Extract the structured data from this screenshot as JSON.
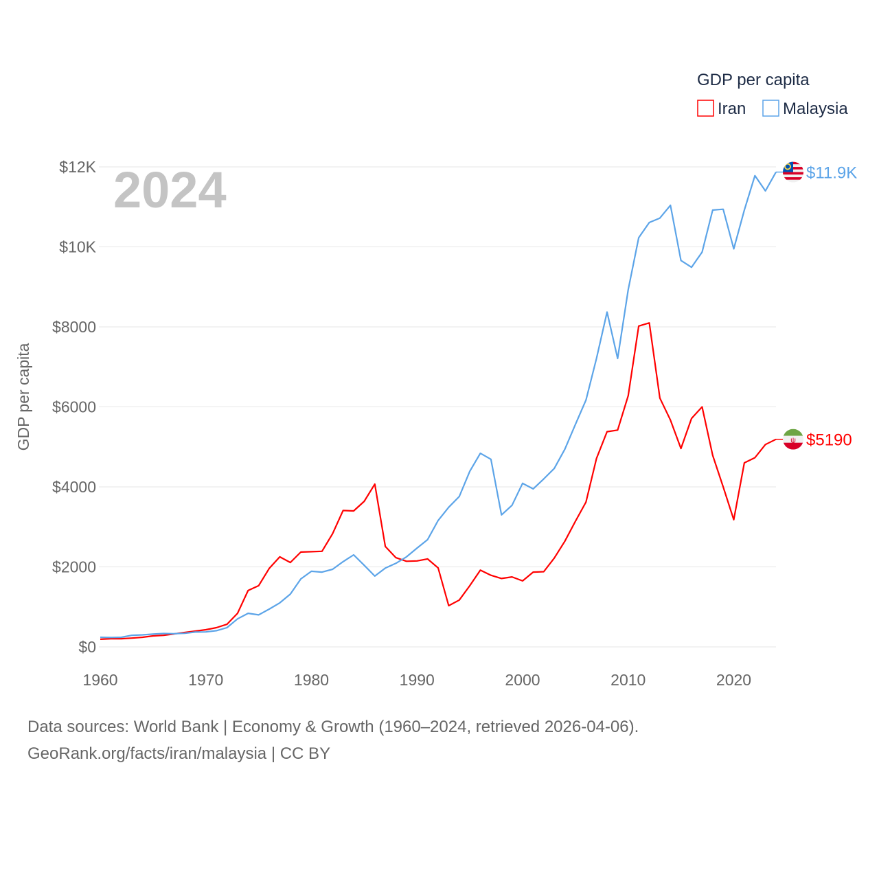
{
  "chart_data": {
    "type": "line",
    "title": "",
    "year_label": "2024",
    "xlabel": "",
    "ylabel": "GDP per capita",
    "xlim": [
      1960,
      2024
    ],
    "ylim": [
      0,
      12000
    ],
    "x_ticks": [
      1960,
      1970,
      1980,
      1990,
      2000,
      2010,
      2020
    ],
    "x_tick_labels": [
      "1960",
      "1970",
      "1980",
      "1990",
      "2000",
      "2010",
      "2020"
    ],
    "y_ticks": [
      0,
      2000,
      4000,
      6000,
      8000,
      10000,
      12000
    ],
    "y_tick_labels": [
      "$0",
      "$2000",
      "$4000",
      "$6000",
      "$8000",
      "$10K",
      "$12K"
    ],
    "grid": true,
    "legend": {
      "title": "GDP per capita",
      "placement": "top-right"
    },
    "x": [
      1960,
      1961,
      1962,
      1963,
      1964,
      1965,
      1966,
      1967,
      1968,
      1969,
      1970,
      1971,
      1972,
      1973,
      1974,
      1975,
      1976,
      1977,
      1978,
      1979,
      1980,
      1981,
      1982,
      1983,
      1984,
      1985,
      1986,
      1987,
      1988,
      1989,
      1990,
      1991,
      1992,
      1993,
      1994,
      1995,
      1996,
      1997,
      1998,
      1999,
      2000,
      2001,
      2002,
      2003,
      2004,
      2005,
      2006,
      2007,
      2008,
      2009,
      2010,
      2011,
      2012,
      2013,
      2014,
      2015,
      2016,
      2017,
      2018,
      2019,
      2020,
      2021,
      2022,
      2023,
      2024
    ],
    "series": [
      {
        "name": "Iran",
        "color": "#ff0000",
        "end_label": "$5190",
        "flag": "iran-flag",
        "values": [
          190,
          205,
          205,
          220,
          240,
          275,
          290,
          325,
          360,
          395,
          430,
          480,
          565,
          840,
          1410,
          1530,
          1960,
          2250,
          2110,
          2370,
          2380,
          2390,
          2830,
          3410,
          3400,
          3640,
          4070,
          2510,
          2230,
          2140,
          2150,
          2200,
          1975,
          1030,
          1170,
          1530,
          1920,
          1790,
          1710,
          1750,
          1650,
          1870,
          1880,
          2220,
          2640,
          3140,
          3620,
          4710,
          5380,
          5420,
          6280,
          8020,
          8100,
          6220,
          5670,
          4960,
          5710,
          6000,
          4790,
          4000,
          3180,
          4600,
          4730,
          5060,
          5190
        ]
      },
      {
        "name": "Malaysia",
        "color": "#5ca4e8",
        "end_label": "$11.9K",
        "flag": "malaysia-flag",
        "values": [
          240,
          235,
          240,
          290,
          300,
          320,
          335,
          330,
          340,
          370,
          375,
          405,
          480,
          700,
          840,
          800,
          945,
          1100,
          1320,
          1700,
          1890,
          1870,
          1940,
          2130,
          2300,
          2040,
          1770,
          1970,
          2090,
          2250,
          2470,
          2680,
          3160,
          3490,
          3760,
          4390,
          4840,
          4690,
          3300,
          3540,
          4090,
          3950,
          4200,
          4460,
          4940,
          5560,
          6170,
          7210,
          8370,
          7210,
          8930,
          10230,
          10610,
          10720,
          11040,
          9660,
          9490,
          9870,
          10920,
          10940,
          9950,
          10920,
          11780,
          11400,
          11870
        ]
      }
    ]
  },
  "footer": {
    "line1": "Data sources: World Bank | Economy & Growth (1960–2024, retrieved 2026-04-06).",
    "line2": "GeoRank.org/facts/iran/malaysia | CC BY"
  }
}
